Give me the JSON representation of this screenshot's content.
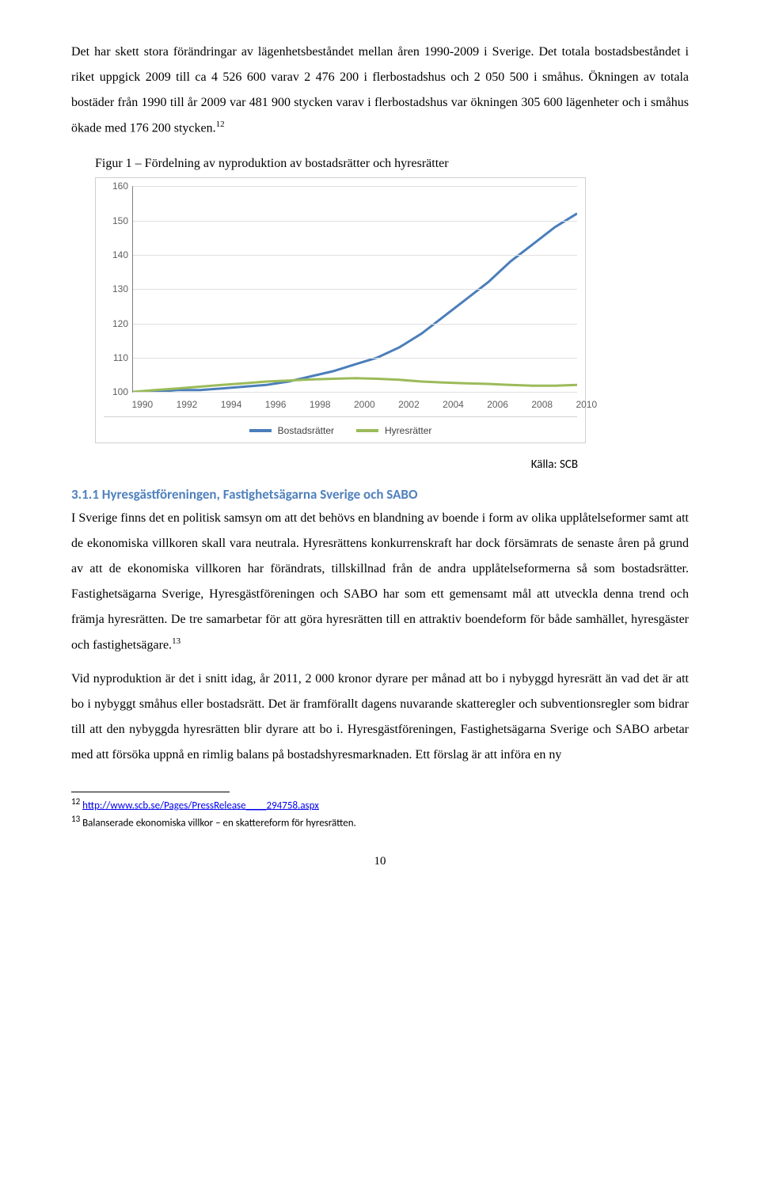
{
  "para1": "Det har skett stora förändringar av lägenhetsbeståndet mellan åren 1990-2009 i Sverige. Det totala bostadsbeståndet i riket uppgick 2009 till ca 4 526 600 varav 2 476 200 i flerbostadshus och 2 050 500 i småhus. Ökningen av totala bostäder från 1990 till år 2009 var 481 900 stycken varav i flerbostadshus var ökningen 305 600 lägenheter och i småhus ökade med 176 200 stycken.",
  "sup1": "12",
  "figure_caption": "Figur 1 – Fördelning av nyproduktion av bostadsrätter och hyresrätter",
  "chart": {
    "type": "line",
    "ymin": 100,
    "ymax": 160,
    "yticks": [
      100,
      110,
      120,
      130,
      140,
      150,
      160
    ],
    "xticks": [
      1990,
      1992,
      1994,
      1996,
      1998,
      2000,
      2002,
      2004,
      2006,
      2008,
      2010
    ],
    "x_values": [
      1990,
      1991,
      1992,
      1993,
      1994,
      1995,
      1996,
      1997,
      1998,
      1999,
      2000,
      2001,
      2002,
      2003,
      2004,
      2005,
      2006,
      2007,
      2008,
      2009,
      2010
    ],
    "series": [
      {
        "name": "Bostadsrätter",
        "color": "#4a7ebb",
        "width": 3,
        "values": [
          100,
          100,
          100.5,
          100.5,
          101,
          101.5,
          102,
          103,
          104.5,
          106,
          108,
          110,
          113,
          117,
          122,
          127,
          132,
          138,
          143,
          148,
          152
        ]
      },
      {
        "name": "Hyresrätter",
        "color": "#9bbb59",
        "width": 3,
        "values": [
          100,
          100.5,
          101,
          101.5,
          102,
          102.5,
          103,
          103.3,
          103.6,
          103.8,
          104,
          103.8,
          103.5,
          103,
          102.7,
          102.5,
          102.3,
          102,
          101.8,
          101.8,
          102
        ]
      }
    ],
    "grid_color": "#e0e0e0",
    "axis_color": "#808080",
    "tick_font": "12",
    "tick_color": "#606060",
    "legend_border": "#d0d0d0"
  },
  "source_label": "Källa: SCB",
  "subhead": "3.1.1 Hyresgästföreningen, Fastighetsägarna Sverige och SABO",
  "para2": "I Sverige finns det en politisk samsyn om att det behövs en blandning av boende i form av olika upplåtelseformer samt att de ekonomiska villkoren skall vara neutrala. Hyresrättens konkurrenskraft har dock försämrats de senaste åren på grund av att de ekonomiska villkoren har förändrats, tillskillnad från de andra upplåtelseformerna så som bostadsrätter. Fastighetsägarna Sverige, Hyresgästföreningen och SABO har som ett gemensamt mål att utveckla denna trend och främja hyresrätten. De tre samarbetar för att göra hyresrätten till en attraktiv boendeform för både samhället, hyresgäster och fastighetsägare.",
  "sup2": "13",
  "para3": "Vid nyproduktion är det i snitt idag, år 2011, 2 000 kronor dyrare per månad att bo i nybyggd hyresrätt än vad det är att bo i nybyggt småhus eller bostadsrätt. Det är framförallt dagens nuvarande skatteregler och subventionsregler som bidrar till att den nybyggda hyresrätten blir dyrare att bo i. Hyresgästföreningen, Fastighetsägarna Sverige och SABO arbetar med att försöka uppnå en rimlig balans på bostadshyresmarknaden. Ett förslag är att införa en ny",
  "fn12_num": "12",
  "fn12_link": "http://www.scb.se/Pages/PressRelease____294758.aspx",
  "fn13_num": "13",
  "fn13_text": " Balanserade ekonomiska villkor – en skattereform för hyresrätten.",
  "page_number": "10"
}
